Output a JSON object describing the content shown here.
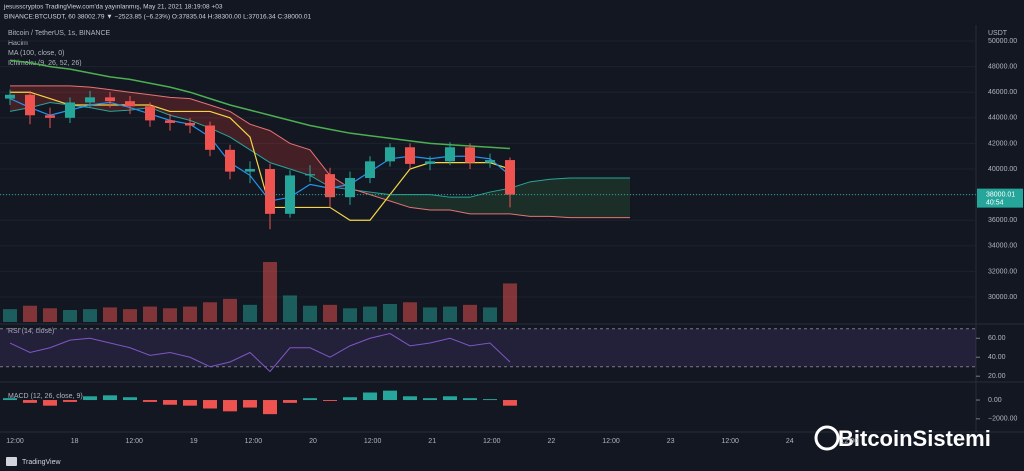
{
  "header": {
    "line1": "jesusscryptos TradingView.com'da yayınlanmış, May 21, 2021 18:19:08 +03",
    "line2": "BINANCE:BTCUSDT, 60 38002.79 ▼ −2523.85 (−6.23%) O:37835.04 H:38300.00 L:37016.34 C:38000.01"
  },
  "legend": {
    "symbol": "Bitcoin / TetherUS, 1s, BINANCE",
    "volume": "Hacim",
    "ma": "MA (100, close, 0)",
    "ichimoku": "Ichimoku (9, 26, 52, 26)",
    "rsi": "RSI (14, close)",
    "macd": "MACD (12, 26, close, 9)"
  },
  "price_axis": {
    "unit": "USDT",
    "ylim": [
      28050,
      50860
    ],
    "yticks": [
      {
        "value": 50000,
        "label": "50000.00"
      },
      {
        "value": 48000,
        "label": "48000.00"
      },
      {
        "value": 46000,
        "label": "46000.00"
      },
      {
        "value": 44000,
        "label": "44000.00"
      },
      {
        "value": 42000,
        "label": "42000.00"
      },
      {
        "value": 40000,
        "label": "40000.00"
      },
      {
        "value": 38000,
        "label": "38000.00"
      },
      {
        "value": 36000,
        "label": "36000.00"
      },
      {
        "value": 34000,
        "label": "34000.00"
      },
      {
        "value": 32000,
        "label": "32000.00"
      },
      {
        "value": 30000,
        "label": "30000.00"
      }
    ]
  },
  "price_tag": {
    "value": 38000.01,
    "label": "38000.01",
    "countdown": "40:54"
  },
  "candles": {
    "open": [
      45500,
      45800,
      44200,
      44000,
      45200,
      45600,
      45300,
      44900,
      43800,
      43600,
      43400,
      41500,
      39800,
      40000,
      36500,
      39500,
      39600,
      37800,
      39300,
      40600,
      41700,
      40400,
      40600,
      41700,
      40500,
      40700
    ],
    "high": [
      46200,
      46100,
      44800,
      45600,
      46100,
      46000,
      45700,
      45200,
      44300,
      44000,
      43700,
      41900,
      40600,
      40400,
      39900,
      40300,
      40100,
      39800,
      41000,
      42000,
      42000,
      41000,
      42100,
      42000,
      41200,
      40900
    ],
    "low": [
      45000,
      43500,
      43200,
      43600,
      44800,
      44800,
      44300,
      43300,
      43000,
      42800,
      41000,
      39200,
      38900,
      35300,
      36200,
      39000,
      37000,
      37200,
      38900,
      40200,
      40000,
      39900,
      40300,
      40000,
      40100,
      37000
    ],
    "close": [
      45800,
      44200,
      44000,
      45200,
      45600,
      45300,
      44900,
      43800,
      43600,
      43400,
      41500,
      39800,
      40000,
      36500,
      39500,
      39600,
      37800,
      39300,
      40600,
      41700,
      40400,
      40600,
      41700,
      40500,
      40700,
      38000
    ],
    "volume": [
      1500,
      1900,
      1600,
      1400,
      1500,
      1700,
      1500,
      1800,
      1600,
      1800,
      2300,
      2700,
      2000,
      7000,
      3100,
      1900,
      2000,
      1600,
      1800,
      2100,
      2300,
      1700,
      1800,
      2000,
      1700,
      4500
    ]
  },
  "ma": [
    48500,
    48300,
    48000,
    47800,
    47500,
    47200,
    47000,
    46700,
    46400,
    46000,
    45500,
    45000,
    44600,
    44200,
    43800,
    43400,
    43100,
    42800,
    42600,
    42400,
    42200,
    42000,
    41900,
    41800,
    41700,
    41600
  ],
  "kijun": [
    46000,
    46000,
    45500,
    45000,
    45000,
    45000,
    45000,
    45000,
    44500,
    44500,
    44500,
    44000,
    42500,
    37000,
    37000,
    37000,
    37000,
    36000,
    36000,
    38000,
    40000,
    40500,
    40500,
    40500,
    40500,
    40000
  ],
  "tenkan": [
    45500,
    44800,
    44200,
    44600,
    45000,
    45200,
    44800,
    44300,
    43800,
    43500,
    42500,
    40500,
    39500,
    37500,
    37800,
    38800,
    38500,
    38800,
    39800,
    40800,
    41000,
    40800,
    41000,
    41000,
    40800,
    39500
  ],
  "span_a": [
    44500,
    44800,
    45200,
    45000,
    44800,
    44500,
    44600,
    44800,
    44200,
    43800,
    43200,
    42500,
    41500,
    40500,
    40000,
    39500,
    38600,
    38400,
    38200,
    38000,
    38000,
    38000,
    37800,
    37800,
    38200,
    38500,
    39000,
    39200,
    39300,
    39300,
    39300,
    39300
  ],
  "span_b": [
    46500,
    46500,
    46500,
    46500,
    46400,
    46200,
    46000,
    45800,
    45600,
    45500,
    45000,
    44500,
    43500,
    43000,
    42000,
    41500,
    39500,
    38500,
    38000,
    37500,
    37000,
    36800,
    36800,
    36500,
    36500,
    36500,
    36300,
    36300,
    36200,
    36200,
    36200,
    36200
  ],
  "rsi": {
    "values": [
      55,
      45,
      50,
      58,
      60,
      55,
      50,
      42,
      45,
      40,
      30,
      35,
      45,
      25,
      50,
      50,
      40,
      52,
      60,
      65,
      52,
      55,
      60,
      52,
      55,
      35
    ],
    "ylim": [
      16,
      74
    ],
    "bands": [
      30,
      70
    ],
    "yticks": [
      {
        "value": 60,
        "label": "60.00"
      },
      {
        "value": 40,
        "label": "40.00"
      },
      {
        "value": 20,
        "label": "20.00"
      }
    ]
  },
  "macd": {
    "values": [
      200,
      -300,
      -600,
      -200,
      400,
      500,
      300,
      -200,
      -500,
      -600,
      -900,
      -1200,
      -800,
      -1500,
      -300,
      200,
      -100,
      300,
      800,
      1000,
      400,
      200,
      400,
      200,
      100,
      -600
    ],
    "ylim": [
      -3400,
      1600
    ],
    "yticks": [
      {
        "value": 0,
        "label": "0.00"
      },
      {
        "value": -2000,
        "label": "−2000.00"
      }
    ]
  },
  "time_axis": [
    "12:00",
    "18",
    "12:00",
    "19",
    "12:00",
    "20",
    "12:00",
    "21",
    "12:00",
    "22",
    "12:00",
    "23",
    "12:00",
    "24",
    "12:00"
  ],
  "footer": {
    "brand": "TradingView",
    "watermark": "BitcoinSistemi"
  }
}
